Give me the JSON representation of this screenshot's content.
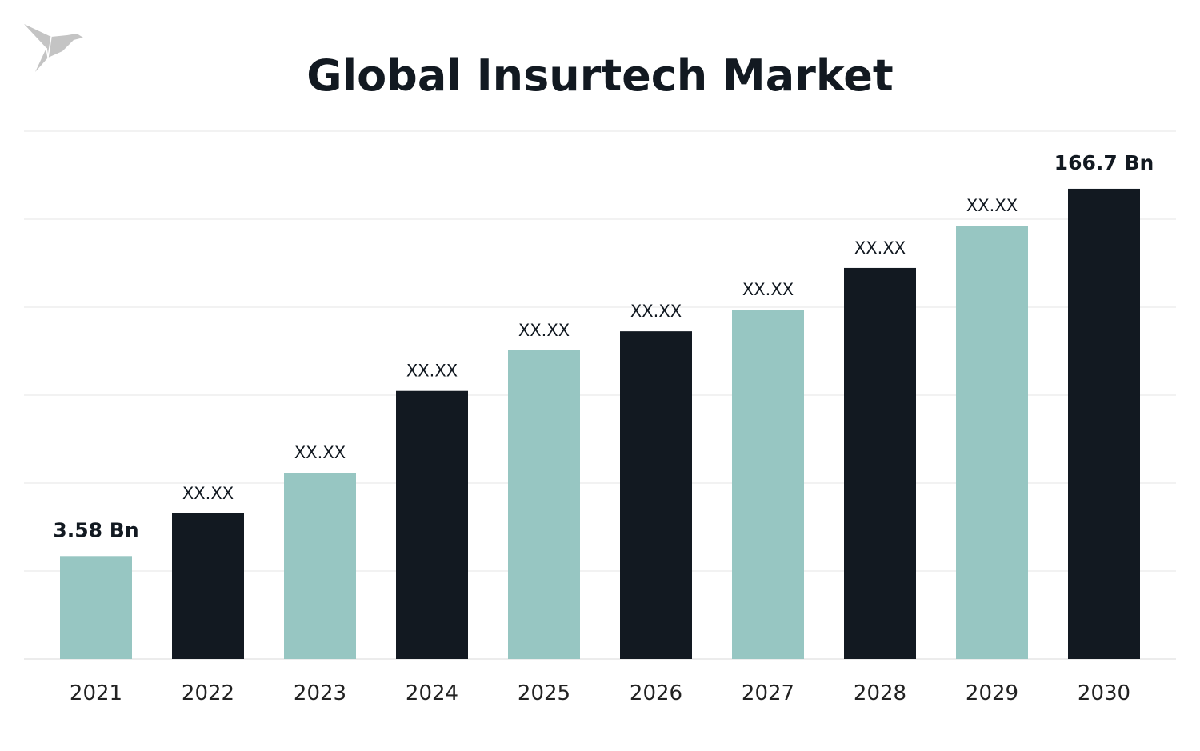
{
  "chart_data": {
    "type": "bar",
    "title": "Global Insurtech Market",
    "xlabel": "",
    "ylabel": "",
    "categories": [
      "2021",
      "2022",
      "2023",
      "2024",
      "2025",
      "2026",
      "2027",
      "2028",
      "2029",
      "2030"
    ],
    "values": [
      3.58,
      null,
      null,
      null,
      null,
      null,
      null,
      null,
      null,
      166.7
    ],
    "data_labels": [
      "3.58 Bn",
      "XX.XX",
      "XX.XX",
      "XX.XX",
      "XX.XX",
      "XX.XX",
      "XX.XX",
      "XX.XX",
      "XX.XX",
      "166.7 Bn"
    ],
    "unit": "Bn",
    "grid": true,
    "legend": "none",
    "colors": {
      "dark": "#121921",
      "teal": "#97c6c2",
      "grid": "#e6e6e6"
    },
    "bar_color_pattern": [
      "teal",
      "dark",
      "teal",
      "dark",
      "teal",
      "dark",
      "teal",
      "dark",
      "teal",
      "dark"
    ]
  },
  "logo": {
    "icon": "origami-bird-icon",
    "color": "#c4c4c4"
  }
}
